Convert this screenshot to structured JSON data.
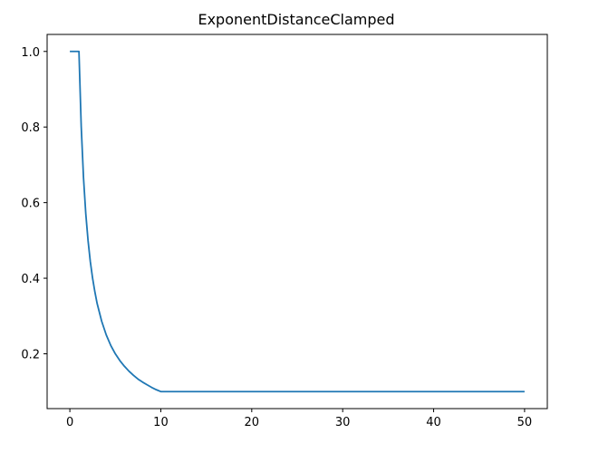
{
  "chart_data": {
    "type": "line",
    "title": "ExponentDistanceClamped",
    "xlabel": "",
    "ylabel": "",
    "xlim": [
      -2.5,
      52.5
    ],
    "ylim": [
      0.055,
      1.045
    ],
    "xticks": [
      0,
      10,
      20,
      30,
      40,
      50
    ],
    "yticks": [
      0.2,
      0.4,
      0.6,
      0.8,
      1.0
    ],
    "xtick_labels": [
      "0",
      "10",
      "20",
      "30",
      "40",
      "50"
    ],
    "ytick_labels": [
      "0.2",
      "0.4",
      "0.6",
      "0.8",
      "1.0"
    ],
    "grid": false,
    "series": [
      {
        "color": "#1f77b4",
        "x": [
          0,
          0.5,
          1,
          1.25,
          1.5,
          1.75,
          2,
          2.25,
          2.5,
          2.75,
          3,
          3.5,
          4,
          4.5,
          5,
          5.5,
          6,
          6.5,
          7,
          7.5,
          8,
          8.5,
          9,
          9.5,
          10,
          15,
          20,
          25,
          30,
          35,
          40,
          45,
          50
        ],
        "y": [
          1.0,
          1.0,
          1.0,
          0.801,
          0.666,
          0.571,
          0.5,
          0.444,
          0.4,
          0.364,
          0.333,
          0.286,
          0.25,
          0.222,
          0.2,
          0.182,
          0.167,
          0.154,
          0.143,
          0.133,
          0.125,
          0.118,
          0.111,
          0.105,
          0.1,
          0.1,
          0.1,
          0.1,
          0.1,
          0.1,
          0.1,
          0.1,
          0.1
        ]
      }
    ]
  }
}
